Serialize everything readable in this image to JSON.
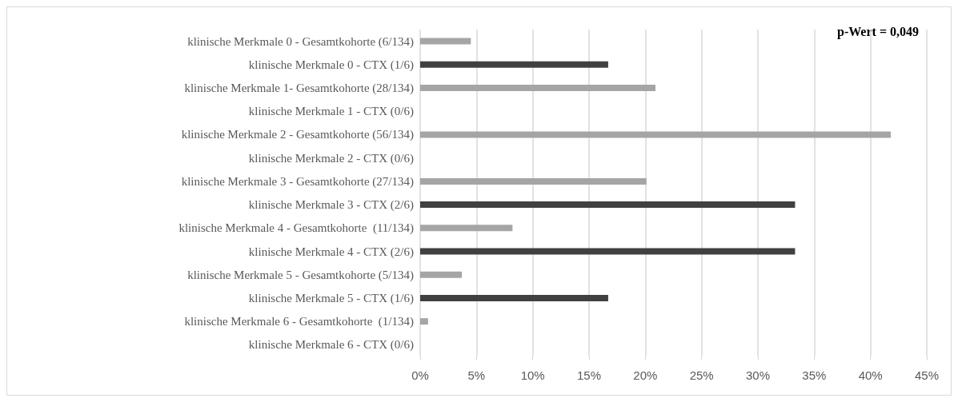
{
  "chart_data": {
    "type": "bar",
    "orientation": "horizontal",
    "categories": [
      "klinische Merkmale 0 - Gesamtkohorte (6/134)",
      "klinische Merkmale 0 - CTX (1/6)",
      "klinische Merkmale 1- Gesamtkohorte (28/134)",
      "klinische Merkmale 1 - CTX (0/6)",
      "klinische Merkmale 2 - Gesamtkohorte (56/134)",
      "klinische Merkmale 2 - CTX (0/6)",
      "klinische Merkmale 3 - Gesamtkohorte (27/134)",
      "klinische Merkmale 3 - CTX (2/6)",
      "klinische Merkmale 4 - Gesamtkohorte  (11/134)",
      "klinische Merkmale 4 - CTX (2/6)",
      "klinische Merkmale 5 - Gesamtkohorte (5/134)",
      "klinische Merkmale 5 - CTX (1/6)",
      "klinische Merkmale 6 - Gesamtkohorte  (1/134)",
      "klinische Merkmale 6 - CTX (0/6)"
    ],
    "values": [
      4.5,
      16.7,
      20.9,
      0,
      41.8,
      0,
      20.1,
      33.3,
      8.2,
      33.3,
      3.7,
      16.7,
      0.7,
      0
    ],
    "colors": [
      "#a5a5a5",
      "#404040",
      "#a5a5a5",
      "#404040",
      "#a5a5a5",
      "#404040",
      "#a5a5a5",
      "#404040",
      "#a5a5a5",
      "#404040",
      "#a5a5a5",
      "#404040",
      "#a5a5a5",
      "#404040"
    ],
    "xlim": [
      0,
      45
    ],
    "xticks": [
      {
        "value": 0,
        "label": "0%"
      },
      {
        "value": 5,
        "label": "5%"
      },
      {
        "value": 10,
        "label": "10%"
      },
      {
        "value": 15,
        "label": "15%"
      },
      {
        "value": 20,
        "label": "20%"
      },
      {
        "value": 25,
        "label": "25%"
      },
      {
        "value": 30,
        "label": "30%"
      },
      {
        "value": 35,
        "label": "35%"
      },
      {
        "value": 40,
        "label": "40%"
      },
      {
        "value": 45,
        "label": "45%"
      }
    ],
    "grid": "x",
    "annotations": [
      "p-Wert = 0,049"
    ]
  }
}
